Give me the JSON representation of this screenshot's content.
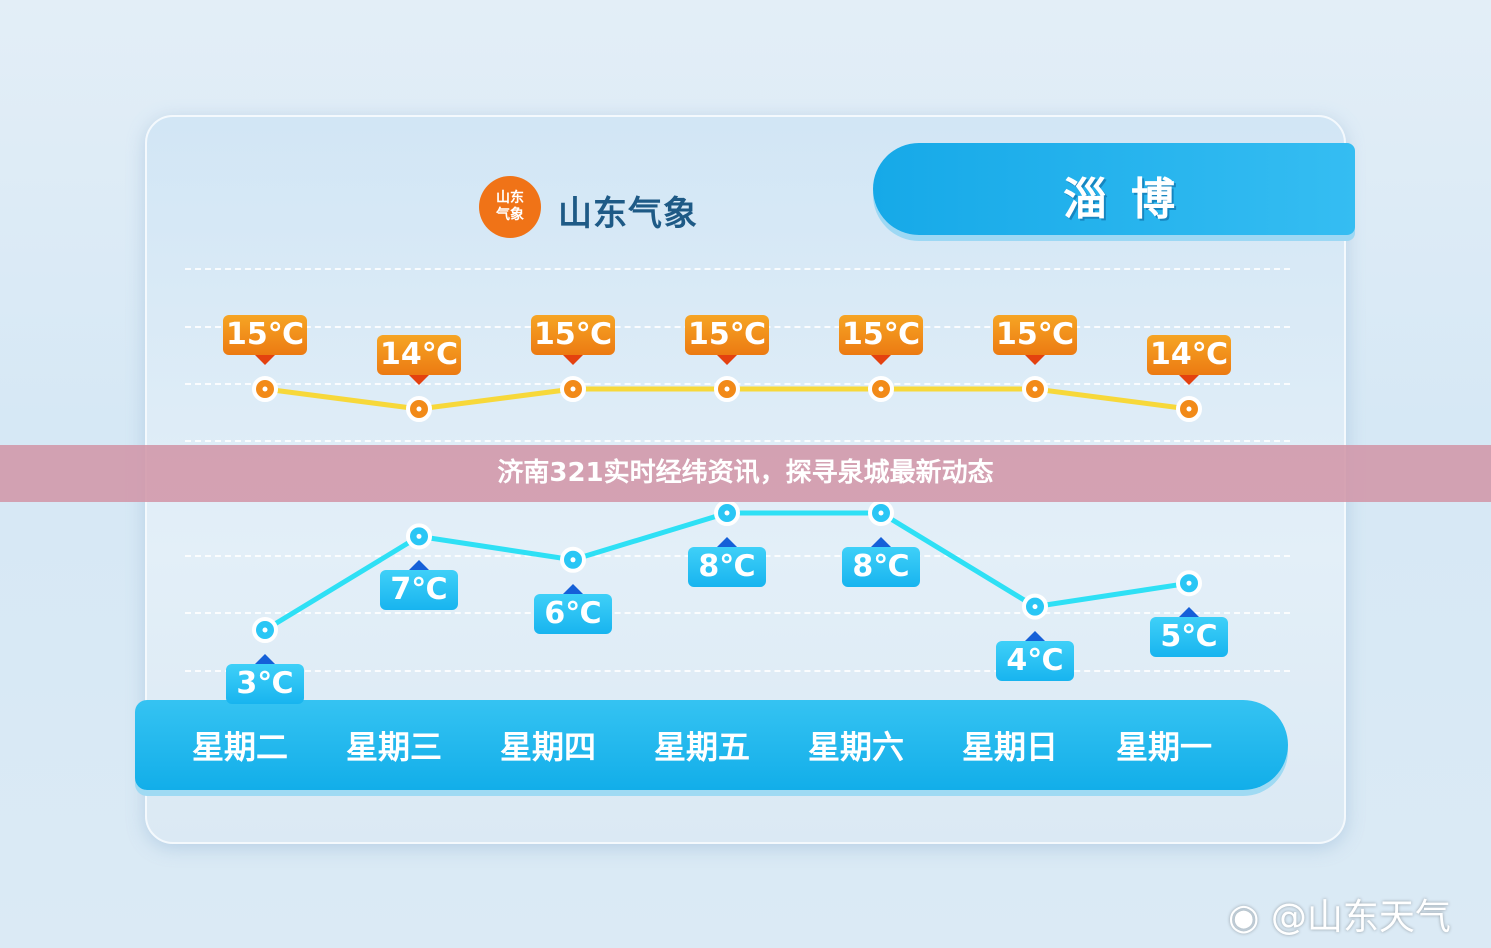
{
  "header": {
    "logo_text": "山东气象",
    "brand": "山东气象",
    "city": "淄博"
  },
  "overlay_title": "济南321实时经纬资讯，探寻泉城最新动态",
  "watermark": "@山东天气",
  "colors": {
    "high_line": "#f7d83a",
    "high_label": "#f08a18",
    "low_line": "#2ee0f5",
    "low_label": "#1ab8f0",
    "day_bar": "#1fb4ec"
  },
  "chart_data": {
    "type": "line",
    "categories": [
      "星期二",
      "星期三",
      "星期四",
      "星期五",
      "星期六",
      "星期日",
      "星期一"
    ],
    "series": [
      {
        "values": [
          15,
          14,
          15,
          15,
          15,
          15,
          14
        ],
        "labels": [
          "15℃",
          "14℃",
          "15℃",
          "15℃",
          "15℃",
          "15℃",
          "14℃"
        ]
      },
      {
        "values": [
          3,
          7,
          6,
          8,
          8,
          4,
          5
        ],
        "labels": [
          "3℃",
          "7℃",
          "6℃",
          "8℃",
          "8℃",
          "4℃",
          "5℃"
        ]
      }
    ],
    "unit": "℃",
    "grid": true
  }
}
